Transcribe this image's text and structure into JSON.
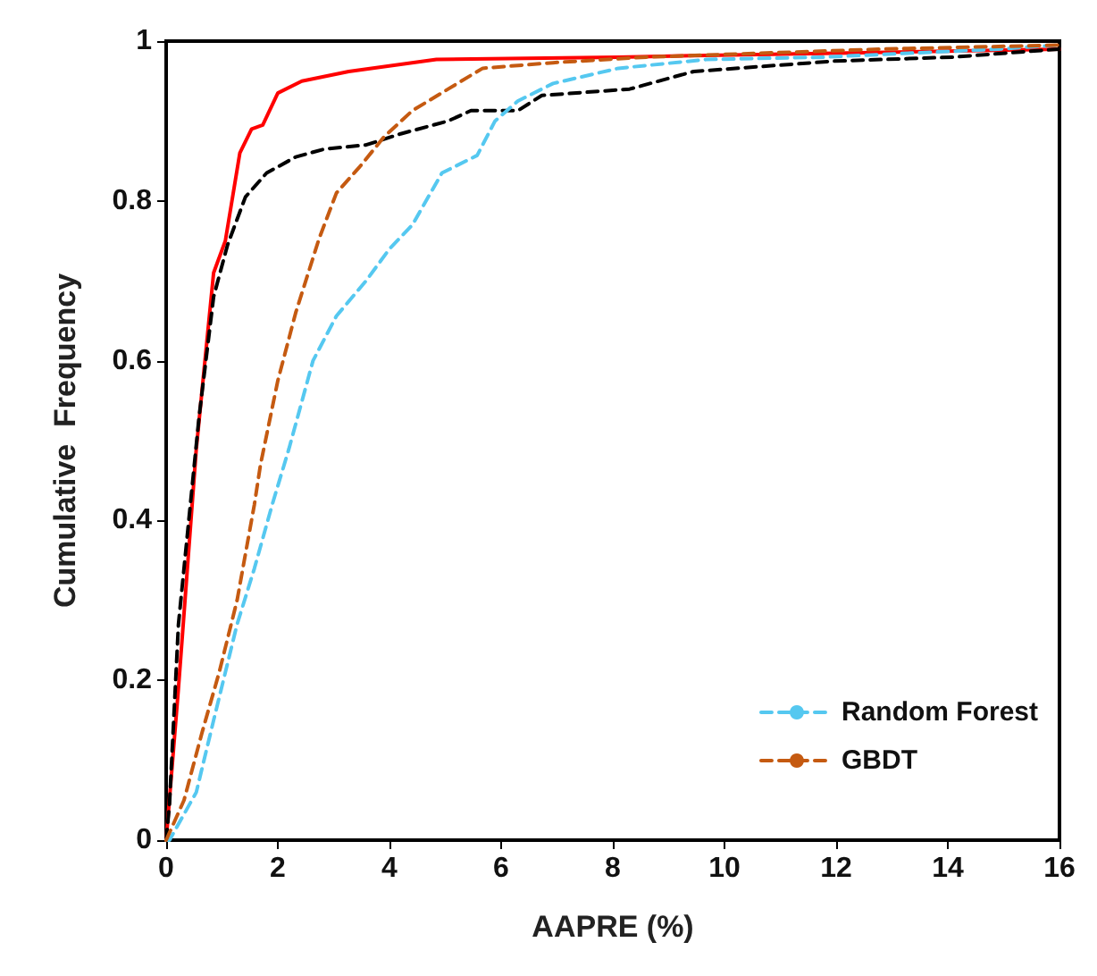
{
  "chart_data": {
    "type": "line",
    "xlabel": "AAPRE (%)",
    "ylabel": "Cumulative  Frequency",
    "xlim": [
      0,
      16
    ],
    "ylim": [
      0,
      1
    ],
    "xticks": [
      0,
      2,
      4,
      6,
      8,
      10,
      12,
      14,
      16
    ],
    "yticks": [
      0,
      0.2,
      0.4,
      0.6,
      0.8,
      1
    ],
    "grid": false,
    "legend": "bottom right",
    "marker": "none",
    "series": [
      {
        "color": "#ff0000",
        "line_style": "solid",
        "x": [
          0,
          0.22,
          0.38,
          0.54,
          0.85,
          1.06,
          1.32,
          1.53,
          1.73,
          2.0,
          2.43,
          3.27,
          4.84,
          8.1,
          12,
          16
        ],
        "values": [
          0,
          0.19,
          0.34,
          0.49,
          0.71,
          0.75,
          0.86,
          0.89,
          0.895,
          0.935,
          0.95,
          0.962,
          0.977,
          0.98,
          0.985,
          0.99
        ]
      },
      {
        "color": "#000000",
        "line_style": "dashed",
        "x": [
          0,
          0.06,
          0.22,
          0.59,
          0.85,
          1.1,
          1.42,
          1.8,
          2.32,
          2.84,
          3.58,
          4.2,
          5.05,
          5.46,
          6.3,
          6.73,
          8.3,
          9.45,
          11.97,
          14.1,
          16
        ],
        "values": [
          0,
          0.045,
          0.27,
          0.53,
          0.68,
          0.745,
          0.805,
          0.835,
          0.855,
          0.865,
          0.87,
          0.884,
          0.9,
          0.913,
          0.913,
          0.932,
          0.94,
          0.962,
          0.975,
          0.98,
          0.99
        ]
      },
      {
        "name": "Random Forest",
        "color": "#55c8f0",
        "line_style": "dashed",
        "x": [
          0,
          0.06,
          0.54,
          0.85,
          1.27,
          1.58,
          1.9,
          2.2,
          2.63,
          3.05,
          3.58,
          4.0,
          4.41,
          4.94,
          5.57,
          5.89,
          6.3,
          6.93,
          8.1,
          9.67,
          11.77,
          14.9,
          16
        ],
        "values": [
          0,
          0,
          0.06,
          0.15,
          0.27,
          0.34,
          0.42,
          0.49,
          0.6,
          0.656,
          0.7,
          0.74,
          0.77,
          0.835,
          0.857,
          0.9,
          0.925,
          0.947,
          0.966,
          0.977,
          0.98,
          0.99,
          0.995
        ]
      },
      {
        "name": "GBDT",
        "color": "#c55a11",
        "line_style": "dashed",
        "x": [
          0,
          0.32,
          0.64,
          0.95,
          1.27,
          1.58,
          1.69,
          2.0,
          2.32,
          2.74,
          3.05,
          3.47,
          3.9,
          4.41,
          5.05,
          5.67,
          6.93,
          8.6,
          12.8,
          16
        ],
        "values": [
          0,
          0.05,
          0.134,
          0.21,
          0.3,
          0.42,
          0.47,
          0.575,
          0.66,
          0.753,
          0.81,
          0.843,
          0.88,
          0.913,
          0.94,
          0.966,
          0.973,
          0.98,
          0.99,
          0.995
        ]
      }
    ]
  }
}
